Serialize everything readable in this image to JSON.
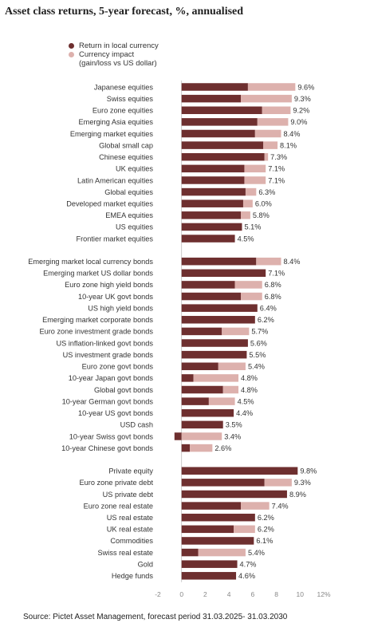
{
  "colors": {
    "local": "#6e2f2f",
    "currency": "#ddb1ad",
    "axis": "#bdbdbd",
    "text": "#333333"
  },
  "legend": {
    "local": "Return in local currency",
    "currency_line1": "Currency impact",
    "currency_line2": "(gain/loss vs US dollar)"
  },
  "source": "Source: Pictet Asset Management, forecast period 31.03.2025- 31.03.2030",
  "chart_data": {
    "type": "bar",
    "title": "Asset class returns, 5-year forecast, %, annualised",
    "orientation": "horizontal",
    "stacked": true,
    "xlim": [
      -2,
      12
    ],
    "xticks": [
      "-2",
      "0",
      "2",
      "4",
      "6",
      "8",
      "10",
      "12%"
    ],
    "series_names": [
      "Return in local currency",
      "Currency impact (gain/loss vs US dollar)"
    ],
    "groups": [
      {
        "items": [
          {
            "label": "Japanese equities",
            "local": 5.6,
            "currency": 4.0,
            "total": "9.6%"
          },
          {
            "label": "Swiss equities",
            "local": 5.0,
            "currency": 4.3,
            "total": "9.3%"
          },
          {
            "label": "Euro zone equities",
            "local": 6.8,
            "currency": 2.4,
            "total": "9.2%"
          },
          {
            "label": "Emerging Asia equities",
            "local": 6.4,
            "currency": 2.6,
            "total": "9.0%"
          },
          {
            "label": "Emerging market equities",
            "local": 6.2,
            "currency": 2.2,
            "total": "8.4%"
          },
          {
            "label": "Global small cap",
            "local": 6.9,
            "currency": 1.2,
            "total": "8.1%"
          },
          {
            "label": "Chinese equities",
            "local": 7.0,
            "currency": 0.3,
            "total": "7.3%"
          },
          {
            "label": "UK equities",
            "local": 5.3,
            "currency": 1.8,
            "total": "7.1%"
          },
          {
            "label": "Latin American equities",
            "local": 5.3,
            "currency": 1.8,
            "total": "7.1%"
          },
          {
            "label": "Global equities",
            "local": 5.4,
            "currency": 0.9,
            "total": "6.3%"
          },
          {
            "label": "Developed market equities",
            "local": 5.2,
            "currency": 0.8,
            "total": "6.0%"
          },
          {
            "label": "EMEA equities",
            "local": 5.0,
            "currency": 0.8,
            "total": "5.8%"
          },
          {
            "label": "US equities",
            "local": 5.1,
            "currency": 0.0,
            "total": "5.1%"
          },
          {
            "label": "Frontier market equities",
            "local": 4.5,
            "currency": 0.0,
            "total": "4.5%"
          }
        ]
      },
      {
        "items": [
          {
            "label": "Emerging market local currency bonds",
            "local": 6.3,
            "currency": 2.1,
            "total": "8.4%"
          },
          {
            "label": "Emerging market US dollar bonds",
            "local": 7.1,
            "currency": 0.0,
            "total": "7.1%"
          },
          {
            "label": "Euro zone high yield bonds",
            "local": 4.5,
            "currency": 2.3,
            "total": "6.8%"
          },
          {
            "label": "10-year UK govt bonds",
            "local": 5.0,
            "currency": 1.8,
            "total": "6.8%"
          },
          {
            "label": "US high yield bonds",
            "local": 6.4,
            "currency": 0.0,
            "total": "6.4%"
          },
          {
            "label": "Emerging market corporate bonds",
            "local": 6.2,
            "currency": 0.0,
            "total": "6.2%"
          },
          {
            "label": "Euro zone investment grade bonds",
            "local": 3.4,
            "currency": 2.3,
            "total": "5.7%"
          },
          {
            "label": "US inflation-linked govt bonds",
            "local": 5.6,
            "currency": 0.0,
            "total": "5.6%"
          },
          {
            "label": "US investment grade bonds",
            "local": 5.5,
            "currency": 0.0,
            "total": "5.5%"
          },
          {
            "label": "Euro zone govt bonds",
            "local": 3.1,
            "currency": 2.3,
            "total": "5.4%"
          },
          {
            "label": "10-year Japan govt bonds",
            "local": 1.0,
            "currency": 3.8,
            "total": "4.8%"
          },
          {
            "label": "Global govt bonds",
            "local": 3.5,
            "currency": 1.3,
            "total": "4.8%"
          },
          {
            "label": "10-year German govt bonds",
            "local": 2.3,
            "currency": 2.2,
            "total": "4.5%"
          },
          {
            "label": "10-year US govt bonds",
            "local": 4.4,
            "currency": 0.0,
            "total": "4.4%"
          },
          {
            "label": "USD cash",
            "local": 3.5,
            "currency": 0.0,
            "total": "3.5%"
          },
          {
            "label": "10-year Swiss govt bonds",
            "local": -0.6,
            "currency": 4.0,
            "total": "3.4%"
          },
          {
            "label": "10-year Chinese govt bonds",
            "local": 0.7,
            "currency": 1.9,
            "total": "2.6%"
          }
        ]
      },
      {
        "items": [
          {
            "label": "Private equity",
            "local": 9.8,
            "currency": 0.0,
            "total": "9.8%"
          },
          {
            "label": "Euro zone private debt",
            "local": 7.0,
            "currency": 2.3,
            "total": "9.3%"
          },
          {
            "label": "US private debt",
            "local": 8.9,
            "currency": 0.0,
            "total": "8.9%"
          },
          {
            "label": "Euro zone real estate",
            "local": 5.0,
            "currency": 2.4,
            "total": "7.4%"
          },
          {
            "label": "US real estate",
            "local": 6.2,
            "currency": 0.0,
            "total": "6.2%"
          },
          {
            "label": "UK real estate",
            "local": 4.4,
            "currency": 1.8,
            "total": "6.2%"
          },
          {
            "label": "Commodities",
            "local": 6.1,
            "currency": 0.0,
            "total": "6.1%"
          },
          {
            "label": "Swiss real estate",
            "local": 1.4,
            "currency": 4.0,
            "total": "5.4%"
          },
          {
            "label": "Gold",
            "local": 4.7,
            "currency": 0.0,
            "total": "4.7%"
          },
          {
            "label": "Hedge funds",
            "local": 4.6,
            "currency": 0.0,
            "total": "4.6%"
          }
        ]
      }
    ]
  }
}
